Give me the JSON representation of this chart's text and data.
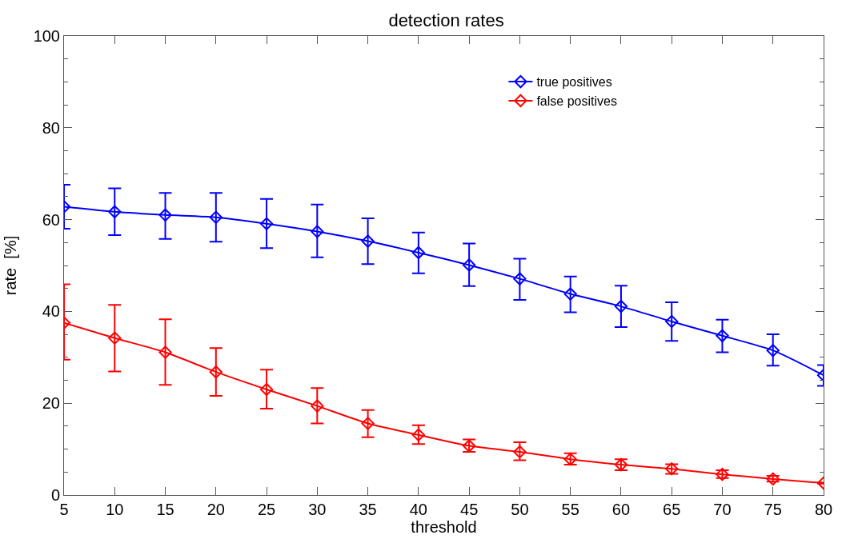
{
  "chart_data": {
    "type": "line",
    "title": "detection rates",
    "xlabel": "threshold",
    "ylabel": "rate  [%]",
    "x": [
      5,
      10,
      15,
      20,
      25,
      30,
      35,
      40,
      45,
      50,
      55,
      60,
      65,
      70,
      75,
      80
    ],
    "series": [
      {
        "name": "true positives",
        "color": "#0000ff",
        "values": [
          62.8,
          61.7,
          61.0,
          60.5,
          59.1,
          57.4,
          55.3,
          52.8,
          50.1,
          47.1,
          43.8,
          41.1,
          37.8,
          34.7,
          31.5,
          26.1
        ],
        "errors": [
          [
            58.0,
            67.6
          ],
          [
            56.6,
            66.8
          ],
          [
            55.8,
            65.8
          ],
          [
            55.2,
            65.8
          ],
          [
            53.8,
            64.5
          ],
          [
            51.8,
            63.3
          ],
          [
            50.3,
            60.3
          ],
          [
            48.3,
            57.2
          ],
          [
            45.5,
            54.8
          ],
          [
            42.5,
            51.5
          ],
          [
            39.8,
            47.6
          ],
          [
            36.6,
            45.6
          ],
          [
            33.6,
            42.0
          ],
          [
            31.1,
            38.2
          ],
          [
            28.2,
            35.0
          ],
          [
            23.8,
            28.3
          ]
        ]
      },
      {
        "name": "false positives",
        "color": "#ff0000",
        "values": [
          37.5,
          34.2,
          31.1,
          26.8,
          23.0,
          19.4,
          15.6,
          13.1,
          10.7,
          9.4,
          7.8,
          6.6,
          5.7,
          4.5,
          3.5,
          2.6
        ],
        "errors": [
          [
            29.5,
            45.9
          ],
          [
            26.9,
            41.4
          ],
          [
            24.0,
            38.3
          ],
          [
            21.6,
            32.0
          ],
          [
            18.8,
            27.3
          ],
          [
            15.6,
            23.3
          ],
          [
            12.6,
            18.5
          ],
          [
            11.1,
            15.2
          ],
          [
            9.4,
            12.1
          ],
          [
            7.6,
            11.5
          ],
          [
            6.6,
            9.1
          ],
          [
            5.4,
            7.8
          ],
          [
            4.6,
            6.7
          ],
          [
            3.7,
            5.4
          ],
          [
            2.9,
            4.2
          ],
          [
            2.5,
            2.7
          ]
        ]
      }
    ],
    "xlim": [
      5,
      80
    ],
    "xticks": [
      5,
      10,
      15,
      20,
      25,
      30,
      35,
      40,
      45,
      50,
      55,
      60,
      65,
      70,
      75,
      80
    ],
    "ylim": [
      0,
      100
    ],
    "yticks": [
      0,
      20,
      40,
      60,
      80,
      100
    ],
    "marker": "diamond",
    "line_style": "solid",
    "legend": "top right"
  }
}
